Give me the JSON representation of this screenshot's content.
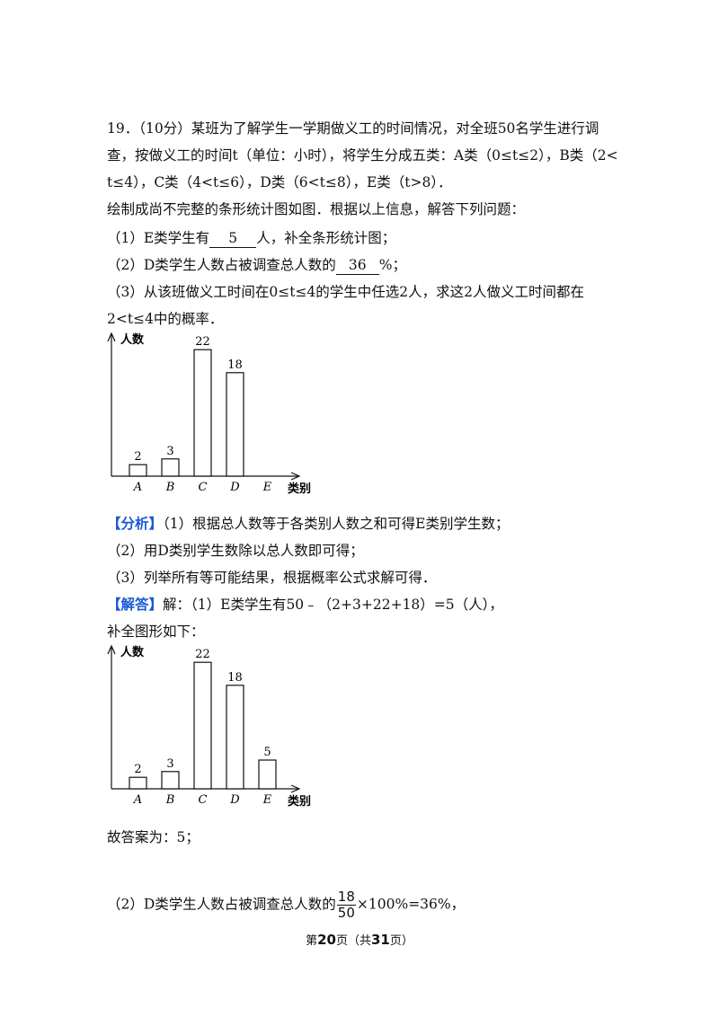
{
  "problem": {
    "line1": "19．（10分）某班为了解学生一学期做义工的时间情况，对全班50名学生进行调",
    "line2": "查，按做义工的时间t（单位：小时），将学生分成五类：A类（0≤t≤2），B类（2<",
    "line3": "t≤4），C类（4<t≤6），D类（6<t≤8），E类（t>8）．",
    "line4": "绘制成尚不完整的条形统计图如图．根据以上信息，解答下列问题：",
    "q1_prefix": "（1）E类学生有",
    "q1_answer": "5",
    "q1_suffix": "人，补全条形统计图；",
    "q2_prefix": "（2）D类学生人数占被调查总人数的",
    "q2_answer": "36",
    "q2_suffix": "%；",
    "q3_line1": "（3）从该班做义工时间在0≤t≤4的学生中任选2人，求这2人做义工时间都在",
    "q3_line2": "2<t≤4中的概率．"
  },
  "analysis": {
    "tag": "【分析】",
    "line1": "（1）根据总人数等于各类别人数之和可得E类别学生数；",
    "line2": "（2）用D类别学生数除以总人数即可得；",
    "line3": "（3）列举所有等可能结果，根据概率公式求解可得．"
  },
  "solution": {
    "tag": "【解答】",
    "line1": "解：（1）E类学生有50﹣（2+3+22+18）=5（人），",
    "line2": "补全图形如下：",
    "line3": "故答案为：5；",
    "line4_prefix": "（2）D类学生人数占被调查总人数的",
    "frac_num": "18",
    "frac_den": "50",
    "line4_suffix": "×100%=36%，"
  },
  "chart_data": [
    {
      "type": "bar",
      "ylabel": "人数",
      "xlabel": "类别",
      "categories": [
        "A",
        "B",
        "C",
        "D",
        "E"
      ],
      "values": [
        2,
        3,
        22,
        18,
        null
      ]
    },
    {
      "type": "bar",
      "ylabel": "人数",
      "xlabel": "类别",
      "categories": [
        "A",
        "B",
        "C",
        "D",
        "E"
      ],
      "values": [
        2,
        3,
        22,
        18,
        5
      ]
    }
  ],
  "footer": {
    "pre": "第",
    "page": "20",
    "mid": "页（共",
    "total": "31",
    "post": "页）"
  }
}
